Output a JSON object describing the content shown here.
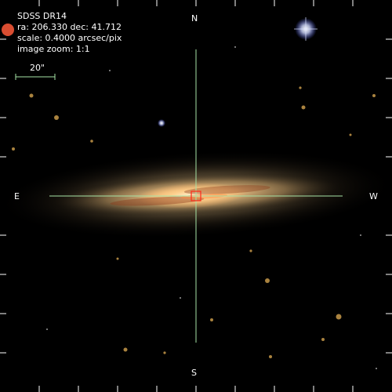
{
  "overlay": {
    "survey": "SDSS DR14",
    "coords": "ra: 206.330 dec: 41.712",
    "scale": "scale: 0.4000 arcsec/pix",
    "zoom": "image zoom: 1:1",
    "scalebar_label": "20\""
  },
  "compass": {
    "north": "N",
    "south": "S",
    "east": "E",
    "west": "W"
  },
  "colors": {
    "crosshair": "#a6e3a6",
    "target_box": "#ff2a1a",
    "sky": "#000000"
  }
}
